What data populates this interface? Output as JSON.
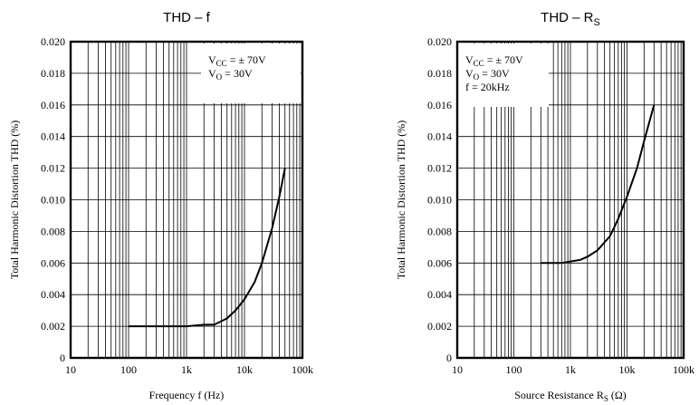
{
  "chart_data": [
    {
      "type": "line",
      "title": "THD – f",
      "title_base": "THD – R",
      "title_sub": "",
      "xlabel": "Frequency f (Hz)",
      "xlabel_base": "",
      "xlabel_sub": "",
      "xlabel_suffix": "",
      "ylabel": "Total Harmonic Distortion THD (%)",
      "x_scale": "log",
      "xlim": [
        10,
        100000
      ],
      "ylim": [
        0,
        0.02
      ],
      "x_ticks": [
        10,
        100,
        1000,
        10000,
        100000
      ],
      "x_tick_labels": [
        "10",
        "100",
        "1k",
        "10k",
        "100k"
      ],
      "y_ticks": [
        0,
        0.002,
        0.004,
        0.006,
        0.008,
        0.01,
        0.012,
        0.014,
        0.016,
        0.018,
        0.02
      ],
      "y_tick_labels": [
        "0",
        "0.002",
        "0.004",
        "0.006",
        "0.008",
        "0.010",
        "0.012",
        "0.014",
        "0.016",
        "0.018",
        "0.020"
      ],
      "grid": true,
      "annotations": [
        {
          "base": "V",
          "sub": "CC",
          "rest": " = ± 70V"
        },
        {
          "base": "V",
          "sub": "O",
          "rest": " = 30V"
        }
      ],
      "series": [
        {
          "x": [
            100,
            300,
            1000,
            2000,
            3000,
            5000,
            7000,
            10000,
            15000,
            20000,
            30000,
            40000,
            50000
          ],
          "y": [
            0.002,
            0.002,
            0.002,
            0.0021,
            0.0021,
            0.0025,
            0.003,
            0.0037,
            0.0048,
            0.006,
            0.0082,
            0.0102,
            0.012
          ]
        }
      ]
    },
    {
      "type": "line",
      "title": "",
      "title_base": "THD – R",
      "title_sub": "S",
      "xlabel": "",
      "xlabel_base": "Source Resistance R",
      "xlabel_sub": "S",
      "xlabel_suffix": " (Ω)",
      "ylabel": "Total Harmonic Distortion THD (%)",
      "x_scale": "log",
      "xlim": [
        10,
        100000
      ],
      "ylim": [
        0,
        0.02
      ],
      "x_ticks": [
        10,
        100,
        1000,
        10000,
        100000
      ],
      "x_tick_labels": [
        "10",
        "100",
        "1k",
        "10k",
        "100k"
      ],
      "y_ticks": [
        0,
        0.002,
        0.004,
        0.006,
        0.008,
        0.01,
        0.012,
        0.014,
        0.016,
        0.018,
        0.02
      ],
      "y_tick_labels": [
        "0",
        "0.002",
        "0.004",
        "0.006",
        "0.008",
        "0.010",
        "0.012",
        "0.014",
        "0.016",
        "0.018",
        "0.020"
      ],
      "grid": true,
      "annotations": [
        {
          "base": "V",
          "sub": "CC",
          "rest": " = ± 70V"
        },
        {
          "base": "V",
          "sub": "O",
          "rest": " = 30V"
        },
        {
          "base": "f = 20kHz",
          "sub": "",
          "rest": ""
        }
      ],
      "series": [
        {
          "x": [
            300,
            500,
            700,
            1000,
            1500,
            2000,
            3000,
            5000,
            7000,
            10000,
            15000,
            20000,
            30000
          ],
          "y": [
            0.006,
            0.006,
            0.006,
            0.0061,
            0.0062,
            0.0064,
            0.0068,
            0.0077,
            0.0088,
            0.0102,
            0.012,
            0.0137,
            0.016
          ]
        }
      ]
    }
  ]
}
